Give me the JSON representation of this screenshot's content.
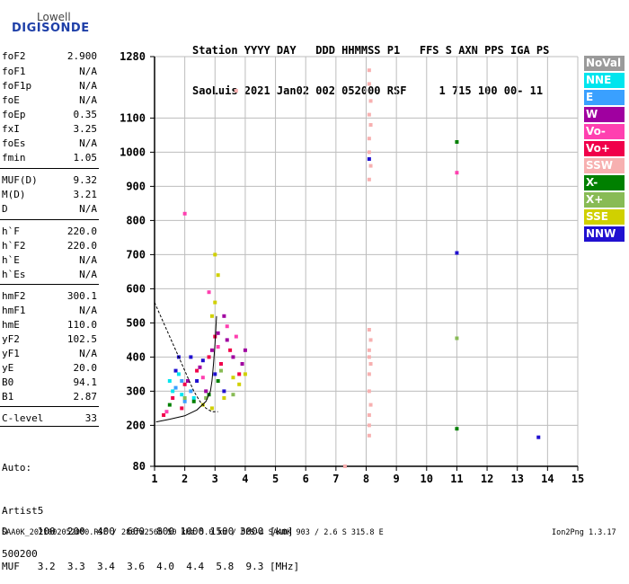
{
  "logo": {
    "line1": "Lowell",
    "line2": "DIGISONDE"
  },
  "header": {
    "row1": "Station YYYY DAY   DDD HHMMSS P1   FFS S AXN PPS IGA PS",
    "row2": "SaoLuis 2021 Jan02 002 052000 RSF     1 715 100 00- 11"
  },
  "params": [
    {
      "name": "foF2",
      "value": "2.900"
    },
    {
      "name": "foF1",
      "value": "N/A"
    },
    {
      "name": "foF1p",
      "value": "N/A"
    },
    {
      "name": "foE",
      "value": "N/A"
    },
    {
      "name": "foEp",
      "value": "0.35"
    },
    {
      "name": "fxI",
      "value": "3.25"
    },
    {
      "name": "foEs",
      "value": "N/A"
    },
    {
      "name": "fmin",
      "value": "1.05"
    },
    {
      "name": "MUF(D)",
      "value": "9.32"
    },
    {
      "name": "M(D)",
      "value": "3.21"
    },
    {
      "name": "D",
      "value": "N/A"
    },
    {
      "name": "h`F",
      "value": "220.0"
    },
    {
      "name": "h`F2",
      "value": "220.0"
    },
    {
      "name": "h`E",
      "value": "N/A"
    },
    {
      "name": "h`Es",
      "value": "N/A"
    },
    {
      "name": "hmF2",
      "value": "300.1"
    },
    {
      "name": "hmF1",
      "value": "N/A"
    },
    {
      "name": "hmE",
      "value": "110.0"
    },
    {
      "name": "yF2",
      "value": "102.5"
    },
    {
      "name": "yF1",
      "value": "N/A"
    },
    {
      "name": "yE",
      "value": "20.0"
    },
    {
      "name": "B0",
      "value": "94.1"
    },
    {
      "name": "B1",
      "value": "2.87"
    },
    {
      "name": "C-level",
      "value": "33"
    }
  ],
  "auto": {
    "line1": "Auto:",
    "line2": "Artist5",
    "line3": "500200"
  },
  "legend": [
    {
      "label": "NoVal",
      "color": "#9a9a9a"
    },
    {
      "label": "NNE",
      "color": "#00e5ee"
    },
    {
      "label": "E",
      "color": "#3aa0ff"
    },
    {
      "label": "W",
      "color": "#a000a0"
    },
    {
      "label": "Vo-",
      "color": "#ff40b0"
    },
    {
      "label": "Vo+",
      "color": "#f0004a"
    },
    {
      "label": "SSW",
      "color": "#f7b0b0"
    },
    {
      "label": "X-",
      "color": "#008000"
    },
    {
      "label": "X+",
      "color": "#88bb55"
    },
    {
      "label": "SSE",
      "color": "#d0d000"
    },
    {
      "label": "NNW",
      "color": "#2010d0"
    }
  ],
  "chart_data": {
    "type": "scatter",
    "title": "",
    "xlabel": "",
    "ylabel": "",
    "xlim": [
      1,
      15
    ],
    "ylim": [
      80,
      1280
    ],
    "x_ticks": [
      1,
      2,
      3,
      4,
      5,
      6,
      7,
      8,
      9,
      10,
      11,
      12,
      13,
      14,
      15
    ],
    "y_ticks": [
      80,
      200,
      300,
      400,
      500,
      600,
      700,
      800,
      900,
      1000,
      1100,
      1280
    ],
    "grid": true,
    "series": [
      {
        "name": "Vo+",
        "color": "#f0004a",
        "points": [
          [
            1.3,
            230
          ],
          [
            1.6,
            280
          ],
          [
            2.0,
            320
          ],
          [
            2.4,
            360
          ],
          [
            2.8,
            400
          ],
          [
            3.0,
            460
          ],
          [
            3.2,
            380
          ],
          [
            3.5,
            420
          ],
          [
            3.8,
            350
          ],
          [
            1.9,
            250
          ]
        ]
      },
      {
        "name": "W",
        "color": "#a000a0",
        "points": [
          [
            2.1,
            330
          ],
          [
            2.5,
            370
          ],
          [
            2.9,
            420
          ],
          [
            3.1,
            470
          ],
          [
            3.3,
            520
          ],
          [
            3.6,
            400
          ],
          [
            3.9,
            380
          ],
          [
            2.7,
            300
          ],
          [
            3.4,
            450
          ],
          [
            4.0,
            420
          ]
        ]
      },
      {
        "name": "NNW",
        "color": "#2010d0",
        "points": [
          [
            1.8,
            400
          ],
          [
            2.2,
            400
          ],
          [
            2.6,
            390
          ],
          [
            3.0,
            350
          ],
          [
            2.4,
            330
          ],
          [
            1.7,
            360
          ],
          [
            3.3,
            300
          ],
          [
            13.7,
            165
          ],
          [
            11.0,
            705
          ],
          [
            8.1,
            980
          ]
        ]
      },
      {
        "name": "SSE",
        "color": "#d0d000",
        "points": [
          [
            3.0,
            560
          ],
          [
            3.1,
            640
          ],
          [
            2.9,
            520
          ],
          [
            3.6,
            340
          ],
          [
            4.0,
            350
          ],
          [
            3.8,
            320
          ],
          [
            2.6,
            260
          ],
          [
            2.9,
            250
          ],
          [
            3.3,
            280
          ],
          [
            3.0,
            700
          ]
        ]
      },
      {
        "name": "NNE",
        "color": "#00e5ee",
        "points": [
          [
            1.6,
            300
          ],
          [
            1.9,
            290
          ],
          [
            2.3,
            280
          ],
          [
            1.8,
            350
          ],
          [
            1.5,
            330
          ]
        ]
      },
      {
        "name": "E",
        "color": "#3aa0ff",
        "points": [
          [
            1.7,
            310
          ],
          [
            2.0,
            270
          ],
          [
            2.2,
            300
          ],
          [
            1.9,
            330
          ]
        ]
      },
      {
        "name": "X-",
        "color": "#008000",
        "points": [
          [
            1.5,
            260
          ],
          [
            2.3,
            270
          ],
          [
            2.8,
            290
          ],
          [
            3.1,
            330
          ],
          [
            11.0,
            1030
          ],
          [
            11.0,
            190
          ]
        ]
      },
      {
        "name": "X+",
        "color": "#88bb55",
        "points": [
          [
            2.0,
            280
          ],
          [
            2.7,
            280
          ],
          [
            3.2,
            360
          ],
          [
            3.6,
            290
          ],
          [
            11.0,
            455
          ]
        ]
      },
      {
        "name": "Vo-",
        "color": "#ff40b0",
        "points": [
          [
            1.4,
            240
          ],
          [
            2.6,
            340
          ],
          [
            3.1,
            430
          ],
          [
            3.4,
            490
          ],
          [
            3.7,
            460
          ],
          [
            2.0,
            820
          ],
          [
            2.8,
            590
          ],
          [
            11.0,
            940
          ]
        ]
      },
      {
        "name": "SSW",
        "color": "#f7b0b0",
        "points": [
          [
            8.1,
            1240
          ],
          [
            8.1,
            1200
          ],
          [
            8.15,
            1150
          ],
          [
            8.1,
            1110
          ],
          [
            8.15,
            1080
          ],
          [
            8.1,
            1040
          ],
          [
            8.1,
            1000
          ],
          [
            8.15,
            960
          ],
          [
            8.1,
            920
          ],
          [
            8.1,
            480
          ],
          [
            8.15,
            450
          ],
          [
            8.1,
            420
          ],
          [
            8.1,
            400
          ],
          [
            8.15,
            380
          ],
          [
            8.1,
            350
          ],
          [
            8.1,
            300
          ],
          [
            8.15,
            260
          ],
          [
            8.1,
            230
          ],
          [
            8.1,
            200
          ],
          [
            8.1,
            170
          ],
          [
            3.7,
            1180
          ],
          [
            7.3,
            80
          ]
        ]
      }
    ],
    "curves": [
      {
        "name": "profile-solid",
        "color": "#000000",
        "points": [
          [
            1.05,
            210
          ],
          [
            1.5,
            218
          ],
          [
            2.0,
            228
          ],
          [
            2.4,
            245
          ],
          [
            2.7,
            270
          ],
          [
            2.85,
            300
          ],
          [
            2.9,
            330
          ],
          [
            2.95,
            380
          ],
          [
            3.0,
            440
          ],
          [
            3.05,
            520
          ]
        ]
      },
      {
        "name": "profile-dashed",
        "color": "#000000",
        "points": [
          [
            1.0,
            560
          ],
          [
            1.3,
            500
          ],
          [
            1.6,
            440
          ],
          [
            1.9,
            380
          ],
          [
            2.1,
            340
          ],
          [
            2.3,
            300
          ],
          [
            2.5,
            270
          ],
          [
            2.7,
            250
          ],
          [
            2.9,
            240
          ],
          [
            3.1,
            240
          ]
        ]
      }
    ]
  },
  "muf_table": {
    "row1": "D     100  200  400  600  800 1000 1500 3000 [km]",
    "row2": "MUF   3.2  3.3  3.4  3.6  4.0  4.4  5.8  9.3 [MHz]"
  },
  "footer": {
    "left": "SAA0K_2021002052000.RSF / 280fx256h 50 kHz 5.0 km / DPS-4 SAA0K 903 / 2.6 S 315.8 E",
    "right": "Ion2Png 1.3.17"
  }
}
